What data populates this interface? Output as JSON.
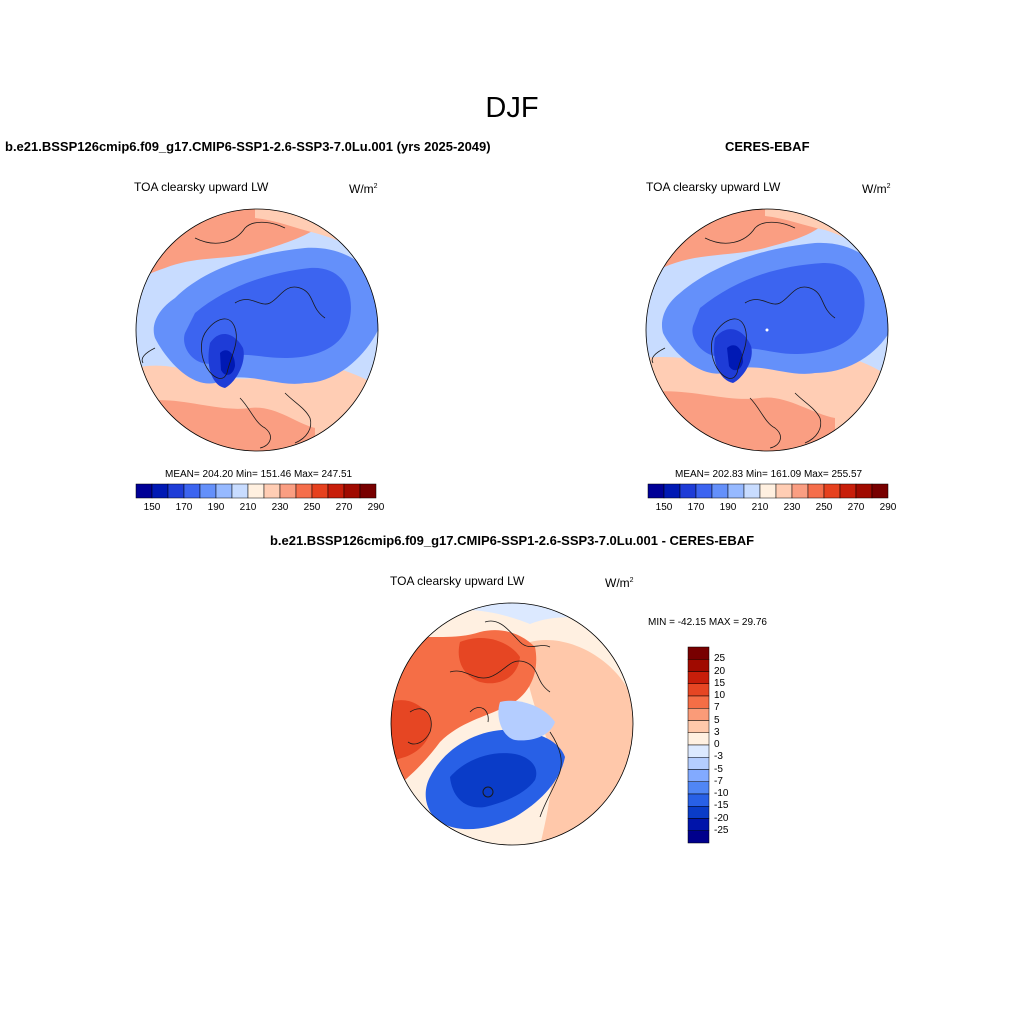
{
  "main_title": "DJF",
  "colors": {
    "seq": [
      "#000096",
      "#0019b4",
      "#1e3cd7",
      "#3c64f0",
      "#6490fa",
      "#96b9ff",
      "#c8dcff",
      "#fff0e0",
      "#ffcdb4",
      "#fa9e82",
      "#f56e4b",
      "#e6411e",
      "#c81e0a",
      "#a00a00",
      "#780000"
    ],
    "div": [
      "#00008c",
      "#0014aa",
      "#0a3cc8",
      "#2860e6",
      "#5086f5",
      "#82aaff",
      "#b4cdff",
      "#dce9ff",
      "#fff0e1",
      "#ffc8aa",
      "#fa9b78",
      "#f56e46",
      "#e64623",
      "#c81e0a",
      "#a00a00",
      "#780000"
    ],
    "coast": "#1a1a1a"
  },
  "chart_data": [
    {
      "type": "polar-map",
      "title": "b.e21.BSSP126cmip6.f09_g17.CMIP6-SSP1-2.6-SSP3-7.0Lu.001 (yrs 2025-2049)",
      "left_label": "TOA clearsky upward LW",
      "units": "W/m",
      "units_exp": "2",
      "stats_text": "MEAN= 204.20  Min= 151.46  Max= 247.51",
      "mean": 204.2,
      "min": 151.46,
      "max": 247.51,
      "levels": [
        150,
        160,
        170,
        180,
        190,
        200,
        210,
        220,
        230,
        240,
        250,
        260,
        270,
        280,
        290
      ],
      "tick_labels": [
        "150",
        "170",
        "190",
        "210",
        "230",
        "250",
        "270",
        "290"
      ]
    },
    {
      "type": "polar-map",
      "title": "CERES-EBAF",
      "left_label": "TOA clearsky upward LW",
      "units": "W/m",
      "units_exp": "2",
      "stats_text": "MEAN= 202.83  Min= 161.09  Max= 255.57",
      "mean": 202.83,
      "min": 161.09,
      "max": 255.57,
      "levels": [
        150,
        160,
        170,
        180,
        190,
        200,
        210,
        220,
        230,
        240,
        250,
        260,
        270,
        280,
        290
      ],
      "tick_labels": [
        "150",
        "170",
        "190",
        "210",
        "230",
        "250",
        "270",
        "290"
      ]
    },
    {
      "type": "polar-map-difference",
      "title": "b.e21.BSSP126cmip6.f09_g17.CMIP6-SSP1-2.6-SSP3-7.0Lu.001 - CERES-EBAF",
      "left_label": "TOA clearsky upward LW",
      "units": "W/m",
      "units_exp": "2",
      "minmax_text": "MIN = -42.15 MAX =  29.76",
      "min": -42.15,
      "max": 29.76,
      "levels": [
        -25,
        -20,
        -15,
        -10,
        -7,
        -5,
        -3,
        0,
        3,
        5,
        7,
        10,
        15,
        20,
        25
      ],
      "tick_labels": [
        "25",
        "20",
        "15",
        "10",
        "7",
        "5",
        "3",
        "0",
        "-3",
        "-5",
        "-7",
        "-10",
        "-15",
        "-20",
        "-25"
      ]
    }
  ]
}
